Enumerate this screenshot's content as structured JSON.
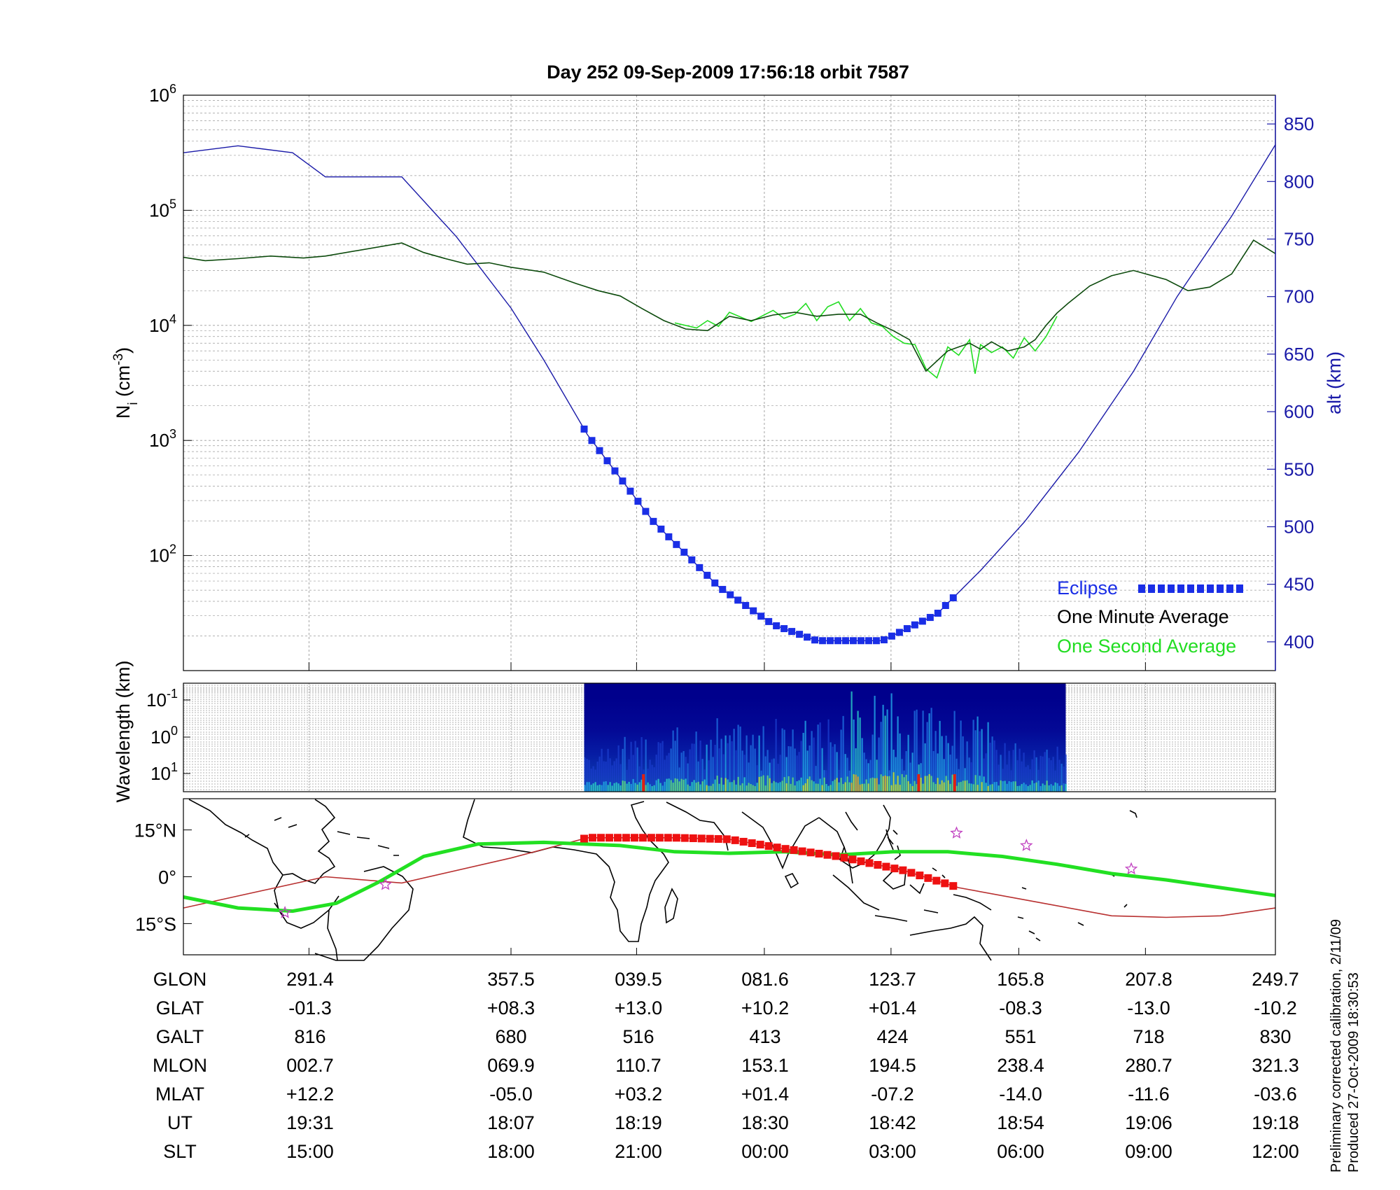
{
  "title": "Day 252  09-Sep-2009 17:56:18   orbit 7587",
  "colors": {
    "eclipse": "#1a2ee6",
    "minute_avg": "#0c4a0c",
    "second_avg": "#22dd22",
    "altitude": "#1a1aa8",
    "track_green": "#22e022",
    "track_red": "#b83030",
    "eclipse_track": "#ee1111",
    "stars": "#c040c0"
  },
  "chart_data": [
    {
      "type": "line",
      "panel": "density",
      "title": "Day 252  09-Sep-2009 17:56:18   orbit 7587",
      "xlabel": "",
      "ylabel": "N_i (cm^-3)",
      "ylabel_main": "N",
      "ylabel_sub": "i",
      "ylabel_unit_open": " (cm",
      "ylabel_unit_sup": "-3",
      "ylabel_unit_close": ")",
      "yscale": "log",
      "ylim": [
        10,
        1000000
      ],
      "y_tick_base": "10",
      "y_tick_exponents": [
        "2",
        "3",
        "4",
        "5",
        "6"
      ],
      "y2label": "alt (km)",
      "y2lim": [
        375,
        875
      ],
      "y2_ticks": [
        "400",
        "450",
        "500",
        "550",
        "600",
        "650",
        "700",
        "750",
        "800",
        "850"
      ],
      "xlim": [
        0,
        1
      ],
      "grid": true,
      "legend": {
        "placement": "bottom-right",
        "entries": [
          "Eclipse",
          "One Minute Average",
          "One Second Average"
        ]
      },
      "series": [
        {
          "name": "One Minute Average",
          "x": [
            0,
            0.02,
            0.05,
            0.08,
            0.11,
            0.13,
            0.2,
            0.22,
            0.24,
            0.26,
            0.28,
            0.3,
            0.33,
            0.36,
            0.38,
            0.4,
            0.42,
            0.44,
            0.46,
            0.48,
            0.5,
            0.52,
            0.54,
            0.56,
            0.58,
            0.6,
            0.62,
            0.635,
            0.65,
            0.665,
            0.68,
            0.7,
            0.71,
            0.72,
            0.73,
            0.74,
            0.755,
            0.77,
            0.78,
            0.79,
            0.8,
            0.81,
            0.83,
            0.85,
            0.87,
            0.9,
            0.92,
            0.94,
            0.96,
            0.98,
            1.0
          ],
          "y": [
            39000,
            36500,
            38000,
            40000,
            38500,
            40000,
            52000,
            43000,
            38000,
            34000,
            35000,
            32000,
            29000,
            23000,
            20000,
            18000,
            14000,
            11000,
            9300,
            9000,
            12000,
            11000,
            12300,
            13000,
            12000,
            12500,
            12500,
            10500,
            9000,
            7500,
            4000,
            6000,
            6500,
            7000,
            6200,
            7200,
            6000,
            6500,
            7500,
            10000,
            12800,
            15500,
            22000,
            27000,
            30000,
            25000,
            20000,
            21500,
            28000,
            55000,
            42000
          ]
        },
        {
          "name": "One Second Average",
          "x": [
            0.45,
            0.47,
            0.48,
            0.49,
            0.5,
            0.52,
            0.54,
            0.55,
            0.56,
            0.57,
            0.58,
            0.59,
            0.6,
            0.61,
            0.62,
            0.63,
            0.64,
            0.65,
            0.66,
            0.67,
            0.68,
            0.69,
            0.7,
            0.71,
            0.72,
            0.725,
            0.73,
            0.74,
            0.75,
            0.76,
            0.77,
            0.78,
            0.79,
            0.8
          ],
          "y": [
            10500,
            9500,
            11000,
            9800,
            13000,
            10800,
            13500,
            11500,
            12500,
            15500,
            11000,
            14500,
            16000,
            11000,
            14000,
            10500,
            9800,
            8000,
            7000,
            6800,
            4200,
            3500,
            6500,
            5500,
            7500,
            3800,
            6800,
            5800,
            6500,
            5200,
            7800,
            6000,
            8000,
            12000
          ]
        },
        {
          "name": "alt (km)",
          "axis": "right",
          "x": [
            0,
            0.05,
            0.1,
            0.13,
            0.2,
            0.25,
            0.3,
            0.33,
            0.37,
            0.43,
            0.49,
            0.54,
            0.58,
            0.64,
            0.69,
            0.73,
            0.77,
            0.82,
            0.87,
            0.91,
            0.96,
            1.0
          ],
          "y": [
            825,
            831,
            825,
            804,
            804,
            752,
            690,
            645,
            580,
            505,
            448,
            415,
            401,
            401,
            424,
            462,
            504,
            565,
            635,
            700,
            770,
            832
          ]
        },
        {
          "name": "Eclipse",
          "axis": "right",
          "x_range": [
            0.367,
            0.705
          ]
        }
      ]
    },
    {
      "type": "heatmap",
      "panel": "spectrogram",
      "ylabel": "Wavelength (km)",
      "yscale": "log",
      "y_tick_base": "10",
      "y_tick_exponents": [
        "-1",
        "0",
        "1"
      ],
      "data_x_range": [
        0.367,
        0.808
      ],
      "colormap": "jet"
    },
    {
      "type": "line",
      "panel": "map",
      "ylabel_ticks": [
        "15°N",
        "0°",
        "15°S"
      ],
      "ylim": [
        -25,
        25
      ],
      "y_ticks_data": [
        15,
        0,
        -15
      ],
      "series": [
        {
          "name": "",
          "color": "green",
          "x": [
            0,
            0.05,
            0.1,
            0.14,
            0.18,
            0.22,
            0.27,
            0.33,
            0.4,
            0.45,
            0.5,
            0.55,
            0.6,
            0.65,
            0.7,
            0.75,
            0.8,
            0.85,
            0.9,
            0.95,
            1.0
          ],
          "y": [
            -6.5,
            -10,
            -11,
            -8.5,
            -1.5,
            6.5,
            10.5,
            11,
            10,
            8,
            7.5,
            8,
            7,
            8,
            8,
            6.5,
            4,
            1,
            -1,
            -3.5,
            -6
          ]
        },
        {
          "name": "",
          "color": "red",
          "x": [
            0,
            0.13,
            0.2,
            0.3,
            0.37,
            0.45,
            0.5,
            0.55,
            0.6,
            0.66,
            0.71,
            0.78,
            0.85,
            0.9,
            0.95,
            1.0
          ],
          "y": [
            -10,
            0,
            -2,
            6,
            12.5,
            12.5,
            12,
            9,
            6.5,
            2,
            -3.5,
            -8,
            -12.5,
            -13,
            -12.5,
            -10
          ]
        },
        {
          "name": "Eclipse",
          "x_range": [
            0.367,
            0.705
          ]
        }
      ],
      "stars": [
        {
          "x": 0.185,
          "y": -2.5
        },
        {
          "x": 0.093,
          "y": -11.5
        },
        {
          "x": 0.708,
          "y": 14
        },
        {
          "x": 0.772,
          "y": 10
        },
        {
          "x": 0.868,
          "y": 2.5
        }
      ]
    },
    {
      "type": "table",
      "panel": "orbit-table",
      "rows": [
        {
          "label": "GLON",
          "values": [
            "291.4",
            "357.5",
            "039.5",
            "081.6",
            "123.7",
            "165.8",
            "207.8",
            "249.7"
          ]
        },
        {
          "label": "GLAT",
          "values": [
            "-01.3",
            "+08.3",
            "+13.0",
            "+10.2",
            "+01.4",
            "-08.3",
            "-13.0",
            "-10.2"
          ]
        },
        {
          "label": "GALT",
          "values": [
            "816",
            "680",
            "516",
            "413",
            "424",
            "551",
            "718",
            "830"
          ]
        },
        {
          "label": "MLON",
          "values": [
            "002.7",
            "069.9",
            "110.7",
            "153.1",
            "194.5",
            "238.4",
            "280.7",
            "321.3"
          ]
        },
        {
          "label": "MLAT",
          "values": [
            "+12.2",
            "-05.0",
            "+03.2",
            "+01.4",
            "-07.2",
            "-14.0",
            "-11.6",
            "-03.6"
          ]
        },
        {
          "label": "UT",
          "values": [
            "19:31",
            "18:07",
            "18:19",
            "18:30",
            "18:42",
            "18:54",
            "19:06",
            "19:18"
          ]
        },
        {
          "label": "SLT",
          "values": [
            "15:00",
            "18:00",
            "21:00",
            "00:00",
            "03:00",
            "06:00",
            "09:00",
            "12:00"
          ]
        }
      ]
    }
  ],
  "credits": {
    "line1": "Preliminary corrected calibration, 2/11/09",
    "line2": "Produced 27-Oct-2009 18:30:53"
  }
}
